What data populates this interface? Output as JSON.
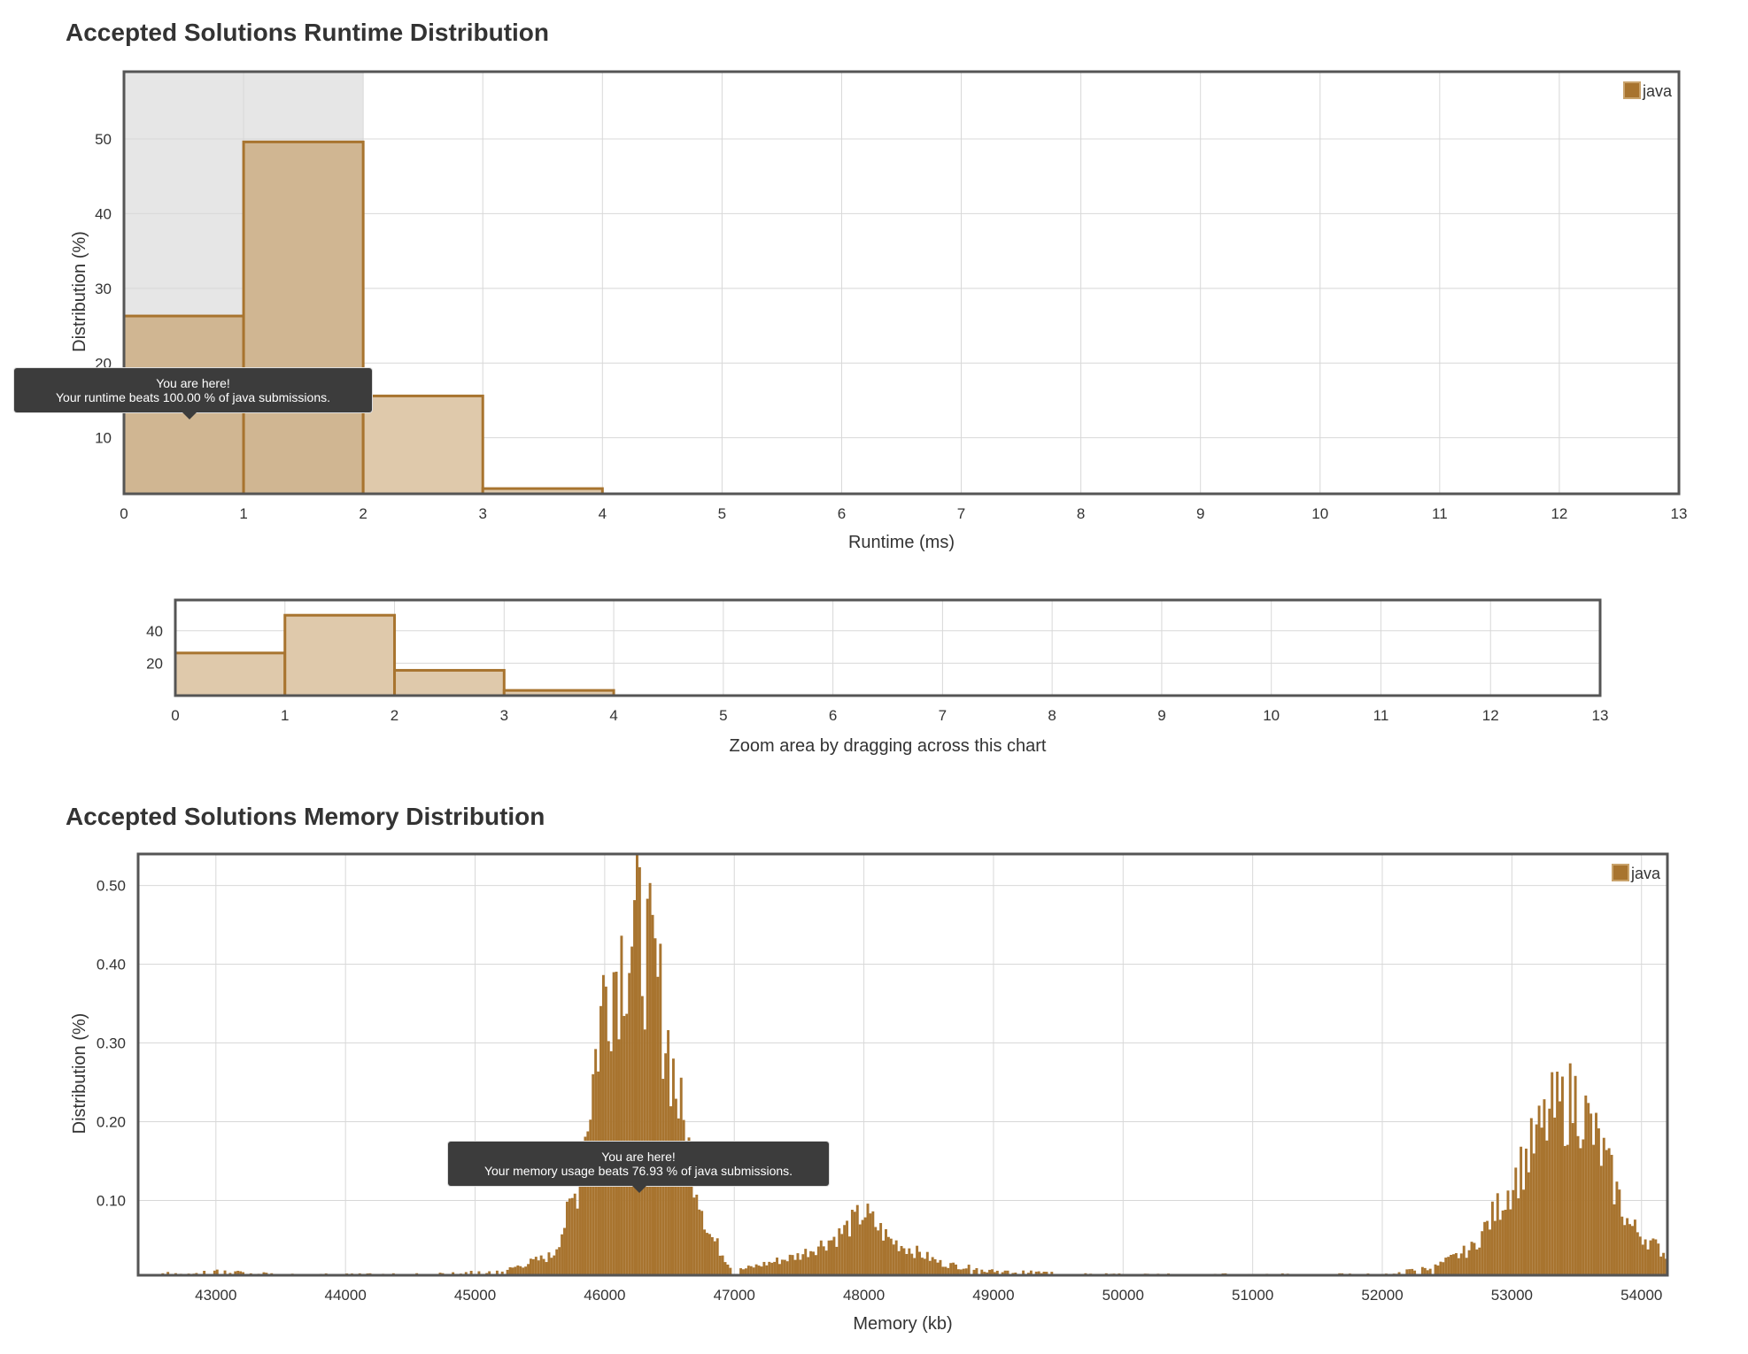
{
  "colors": {
    "bar_stroke": "#a8742f",
    "bar_fill_light": "#dfc9ab",
    "bar_fill_memory": "#a8742f",
    "highlight_region": "#e6e6e6",
    "grid": "#d8d8d8",
    "frame": "#555555",
    "tooltip_bg": "#3c3c3c"
  },
  "runtime": {
    "title": "Accepted Solutions Runtime Distribution",
    "legend": "java",
    "tooltip_line1": "You are here!",
    "tooltip_line2": "Your runtime beats 100.00 % of java submissions.",
    "zoom_label": "Zoom area by dragging across this chart"
  },
  "memory": {
    "title": "Accepted Solutions Memory Distribution",
    "legend": "java",
    "tooltip_line1": "You are here!",
    "tooltip_line2": "Your memory usage beats 76.93 % of java submissions."
  },
  "chart_data": [
    {
      "type": "bar",
      "title": "Accepted Solutions Runtime Distribution",
      "xlabel": "Runtime (ms)",
      "ylabel": "Distribution (%)",
      "xlim": [
        0,
        13
      ],
      "ylim": [
        2.5,
        59
      ],
      "x_ticks": [
        0,
        1,
        2,
        3,
        4,
        5,
        6,
        7,
        8,
        9,
        10,
        11,
        12,
        13
      ],
      "y_ticks": [
        10,
        20,
        30,
        40,
        50
      ],
      "highlight_range": [
        0,
        2
      ],
      "legend": "java",
      "legend_position": "top-right",
      "grid": true,
      "bins": [
        {
          "x0": 0,
          "x1": 1,
          "value": 26.3
        },
        {
          "x0": 1,
          "x1": 2,
          "value": 49.6
        },
        {
          "x0": 2,
          "x1": 3,
          "value": 15.6
        },
        {
          "x0": 3,
          "x1": 4,
          "value": 3.2
        }
      ],
      "annotation": {
        "x": 0.5,
        "text": [
          "You are here!",
          "Your runtime beats 100.00 % of java submissions."
        ]
      }
    },
    {
      "type": "bar",
      "title": "",
      "xlabel": "Zoom area by dragging across this chart",
      "ylabel": "",
      "xlim": [
        0,
        13
      ],
      "ylim": [
        0,
        59
      ],
      "x_ticks": [
        0,
        1,
        2,
        3,
        4,
        5,
        6,
        7,
        8,
        9,
        10,
        11,
        12,
        13
      ],
      "y_ticks": [
        20,
        40
      ],
      "grid": true,
      "bins": [
        {
          "x0": 0,
          "x1": 1,
          "value": 26.3
        },
        {
          "x0": 1,
          "x1": 2,
          "value": 49.6
        },
        {
          "x0": 2,
          "x1": 3,
          "value": 15.6
        },
        {
          "x0": 3,
          "x1": 4,
          "value": 3.2
        }
      ]
    },
    {
      "type": "bar",
      "title": "Accepted Solutions Memory Distribution",
      "xlabel": "Memory (kb)",
      "ylabel": "Distribution (%)",
      "xlim": [
        42400,
        54200
      ],
      "ylim": [
        0.005,
        0.54
      ],
      "x_ticks": [
        43000,
        44000,
        45000,
        46000,
        47000,
        48000,
        49000,
        50000,
        51000,
        52000,
        53000,
        54000
      ],
      "y_ticks": [
        0.1,
        0.2,
        0.3,
        0.4,
        0.5
      ],
      "y_tick_labels": [
        "0.10",
        "0.20",
        "0.30",
        "0.40",
        "0.50"
      ],
      "legend": "java",
      "legend_position": "top-right",
      "grid": true,
      "bin_width": 20,
      "approximate_profile": [
        {
          "x": 42400,
          "value": 0.006
        },
        {
          "x": 43000,
          "value": 0.01
        },
        {
          "x": 43500,
          "value": 0.006
        },
        {
          "x": 44500,
          "value": 0.006
        },
        {
          "x": 45200,
          "value": 0.01
        },
        {
          "x": 45600,
          "value": 0.03
        },
        {
          "x": 45800,
          "value": 0.12
        },
        {
          "x": 46000,
          "value": 0.37
        },
        {
          "x": 46250,
          "value": 0.45
        },
        {
          "x": 46400,
          "value": 0.38
        },
        {
          "x": 46600,
          "value": 0.2
        },
        {
          "x": 46800,
          "value": 0.06
        },
        {
          "x": 47000,
          "value": 0.01
        },
        {
          "x": 47500,
          "value": 0.03
        },
        {
          "x": 47800,
          "value": 0.055
        },
        {
          "x": 48000,
          "value": 0.085
        },
        {
          "x": 48200,
          "value": 0.05
        },
        {
          "x": 48600,
          "value": 0.02
        },
        {
          "x": 49000,
          "value": 0.01
        },
        {
          "x": 50000,
          "value": 0.006
        },
        {
          "x": 52000,
          "value": 0.006
        },
        {
          "x": 52400,
          "value": 0.015
        },
        {
          "x": 52700,
          "value": 0.04
        },
        {
          "x": 53000,
          "value": 0.12
        },
        {
          "x": 53300,
          "value": 0.21
        },
        {
          "x": 53500,
          "value": 0.23
        },
        {
          "x": 53700,
          "value": 0.16
        },
        {
          "x": 53900,
          "value": 0.07
        },
        {
          "x": 54200,
          "value": 0.03
        }
      ],
      "annotation": {
        "x": 46250,
        "text": [
          "You are here!",
          "Your memory usage beats 76.93 % of java submissions."
        ]
      }
    }
  ]
}
